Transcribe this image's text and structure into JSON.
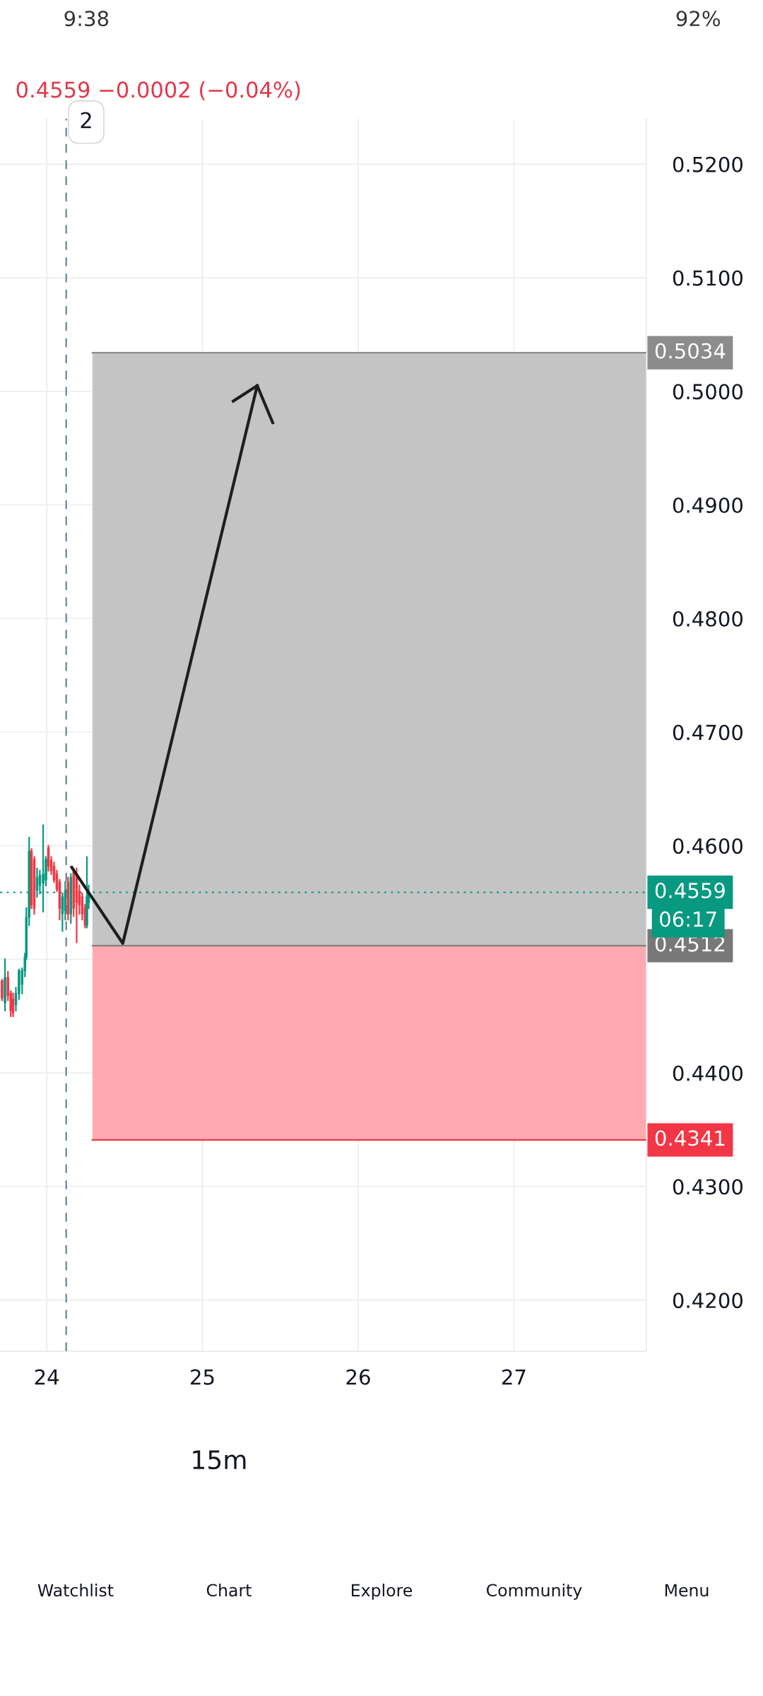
{
  "chart_data": {
    "type": "candlestick",
    "x": [
      23.713,
      23.732,
      23.751,
      23.769,
      23.784,
      23.802,
      23.822,
      23.842,
      23.86,
      23.869,
      23.887,
      23.902,
      23.92,
      23.938,
      23.956,
      23.977,
      23.995,
      24.011,
      24.029,
      24.047,
      24.065,
      24.083,
      24.101,
      24.119,
      24.137,
      24.155,
      24.173,
      24.192,
      24.21,
      24.228,
      24.246,
      24.258,
      24.27
    ],
    "ohlc": [
      [
        0.4481,
        0.4482,
        0.4464,
        0.4466
      ],
      [
        0.4462,
        0.45,
        0.4455,
        0.4484
      ],
      [
        0.4484,
        0.4489,
        0.4464,
        0.4468
      ],
      [
        0.447,
        0.4472,
        0.445,
        0.4455
      ],
      [
        0.4465,
        0.447,
        0.445,
        0.4453
      ],
      [
        0.446,
        0.4475,
        0.4455,
        0.447
      ],
      [
        0.447,
        0.4491,
        0.4465,
        0.449
      ],
      [
        0.4478,
        0.4492,
        0.447,
        0.449
      ],
      [
        0.449,
        0.4505,
        0.4485,
        0.4502
      ],
      [
        0.4502,
        0.4545,
        0.45,
        0.4537
      ],
      [
        0.4537,
        0.4607,
        0.453,
        0.4595
      ],
      [
        0.4595,
        0.4597,
        0.4545,
        0.4548
      ],
      [
        0.4588,
        0.459,
        0.454,
        0.4545
      ],
      [
        0.4561,
        0.458,
        0.4555,
        0.4572
      ],
      [
        0.4565,
        0.4578,
        0.4558,
        0.4574
      ],
      [
        0.4567,
        0.4618,
        0.4542,
        0.4575
      ],
      [
        0.457,
        0.459,
        0.4565,
        0.4588
      ],
      [
        0.4598,
        0.46,
        0.4578,
        0.4582
      ],
      [
        0.4587,
        0.459,
        0.4575,
        0.4578
      ],
      [
        0.4582,
        0.4585,
        0.4568,
        0.457
      ],
      [
        0.4575,
        0.4578,
        0.456,
        0.4562
      ],
      [
        0.4568,
        0.457,
        0.4535,
        0.4545
      ],
      [
        0.454,
        0.4558,
        0.4525,
        0.4555
      ],
      [
        0.4543,
        0.4568,
        0.4535,
        0.456
      ],
      [
        0.4568,
        0.4572,
        0.4535,
        0.454
      ],
      [
        0.454,
        0.4575,
        0.4532,
        0.4572
      ],
      [
        0.4577,
        0.458,
        0.4538,
        0.4545
      ],
      [
        0.4575,
        0.458,
        0.4515,
        0.455
      ],
      [
        0.456,
        0.4565,
        0.454,
        0.4548
      ],
      [
        0.4555,
        0.4558,
        0.4535,
        0.454
      ],
      [
        0.4545,
        0.4548,
        0.4528,
        0.453
      ],
      [
        0.453,
        0.459,
        0.4528,
        0.4555
      ],
      [
        0.455,
        0.4565,
        0.4545,
        0.4559
      ]
    ],
    "colors": [
      "#f23645",
      "#089981",
      "#f23645",
      "#f23645",
      "#f23645",
      "#089981",
      "#089981",
      "#089981",
      "#089981",
      "#089981",
      "#089981",
      "#f23645",
      "#f23645",
      "#089981",
      "#089981",
      "#089981",
      "#089981",
      "#f23645",
      "#f23645",
      "#f23645",
      "#f23645",
      "#f23645",
      "#089981",
      "#089981",
      "#f23645",
      "#089981",
      "#f23645",
      "#f23645",
      "#f23645",
      "#f23645",
      "#f23645",
      "#089981",
      "#089981"
    ],
    "xlim": [
      23.7,
      27.85
    ],
    "xticks": [
      24,
      25,
      26,
      27
    ],
    "ylim": [
      0.4155,
      0.524
    ],
    "yticks": [
      {
        "value": 0.42,
        "label": "0.4200"
      },
      {
        "value": 0.43,
        "label": "0.4300"
      },
      {
        "value": 0.44,
        "label": "0.4400"
      },
      {
        "value": 0.45,
        "label": null
      },
      {
        "value": 0.46,
        "label": "0.4600"
      },
      {
        "value": 0.47,
        "label": "0.4700"
      },
      {
        "value": 0.48,
        "label": "0.4800"
      },
      {
        "value": 0.49,
        "label": "0.4900"
      },
      {
        "value": 0.5,
        "label": "0.5000"
      },
      {
        "value": 0.51,
        "label": "0.5100"
      },
      {
        "value": 0.52,
        "label": "0.5200"
      }
    ],
    "grid": true,
    "bands": [
      {
        "axis": "y",
        "from": 0.4512,
        "to": 0.5034,
        "color": "#c4c4c4"
      },
      {
        "axis": "y",
        "from": 0.4341,
        "to": 0.4512,
        "color": "#ffa9b1"
      }
    ],
    "ref_lines": [
      {
        "axis": "y",
        "value": 0.5034,
        "label": "0.5034",
        "color": "#8c8c8c",
        "line_style": "solid"
      },
      {
        "axis": "y",
        "value": 0.4512,
        "label": "0.4512",
        "color": "#787878",
        "line_style": "solid"
      },
      {
        "axis": "y",
        "value": 0.4341,
        "label": "0.4341",
        "color": "#f23645",
        "line_style": "solid"
      },
      {
        "axis": "y",
        "value": 0.4559,
        "label": "0.4559",
        "color": "#089981",
        "line_style": "dotted"
      },
      {
        "axis": "x",
        "value": 24.125,
        "color": "#5b7f95",
        "line_style": "dashed"
      }
    ],
    "annotations": [
      "0.4559 −0.0002 (−0.04%)",
      "06:17",
      "2",
      "15m",
      "9:38",
      "92%",
      "Watchlist",
      "Chart",
      "Explore",
      "Community",
      "Menu"
    ]
  }
}
